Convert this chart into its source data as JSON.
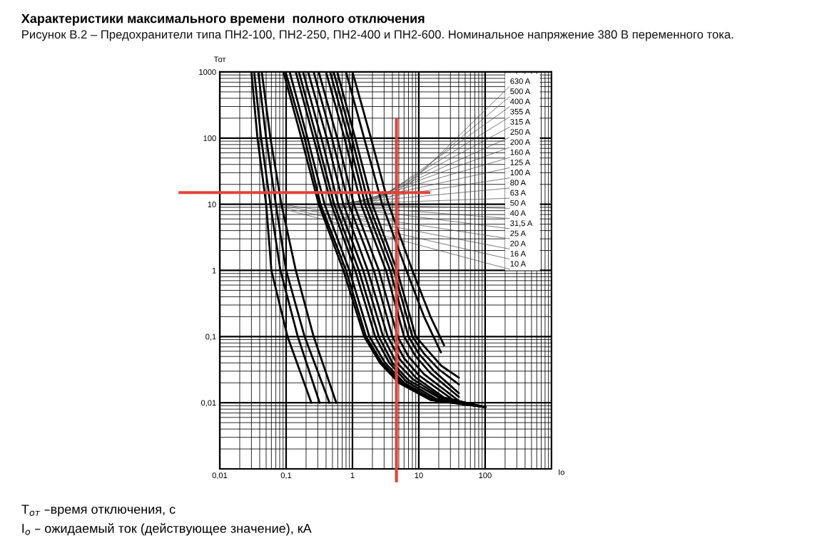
{
  "chart_data": {
    "type": "line",
    "title": "Характеристики максимального времени  полного отключения",
    "subtitle": "Рисунок В.2 – Предохранители типа ПН2-100, ПН2-250, ПН2-400 и ПН2-600. Номинальное напряжение 380 В переменного тока.",
    "xlabel": "Io",
    "ylabel": "Тот",
    "annotations": [
      "T$_{от}$ –время отключения, с",
      "I$_{о}$ – ожидаемый ток (действующее значение), кА"
    ],
    "log": "xy",
    "grid": true,
    "xlim": [
      0.01,
      1000
    ],
    "ylim": [
      0.001,
      1000
    ],
    "xticks": [
      {
        "value": 0.01,
        "label": "0,01"
      },
      {
        "value": 0.1,
        "label": "0,1"
      },
      1,
      10,
      100
    ],
    "yticks": [
      {
        "value": 0.01,
        "label": "0,01"
      },
      {
        "value": 0.1,
        "label": "0,1"
      },
      1,
      10,
      100,
      1000
    ],
    "ref_lines": [
      {
        "axis": "y",
        "value": 15,
        "color": "#e0443a"
      },
      {
        "axis": "x",
        "value": 4.6,
        "color": "#e0443a"
      }
    ],
    "series": [
      {
        "name": "630 A",
        "color": "#000000",
        "x": [
          1.0,
          1.9,
          3.5,
          8,
          15,
          24
        ],
        "values": [
          1000,
          100,
          10,
          1,
          0.2,
          0.074
        ]
      },
      {
        "name": "500 A",
        "color": "#000000",
        "x": [
          0.8,
          1.5,
          2.8,
          6.5,
          12,
          21.5
        ],
        "values": [
          1000,
          100,
          10,
          1,
          0.2,
          0.058
        ]
      },
      {
        "name": "400 A",
        "color": "#000000",
        "x": [
          0.59,
          1.1,
          2,
          4.7,
          9,
          14,
          22,
          40
        ],
        "values": [
          1000,
          100,
          10,
          1,
          0.1,
          0.06,
          0.036,
          0.024
        ]
      },
      {
        "name": "355 A",
        "color": "#000000",
        "x": [
          0.52,
          0.98,
          1.75,
          4.2,
          8,
          12,
          20,
          40
        ],
        "values": [
          1000,
          100,
          10,
          1,
          0.1,
          0.055,
          0.032,
          0.019
        ]
      },
      {
        "name": "315 A",
        "color": "#000000",
        "x": [
          0.46,
          0.87,
          1.55,
          3.7,
          7,
          10,
          17,
          40
        ],
        "values": [
          1000,
          100,
          10,
          1,
          0.1,
          0.055,
          0.03,
          0.014
        ]
      },
      {
        "name": "250 A",
        "color": "#000000",
        "x": [
          0.4,
          0.76,
          1.35,
          3.2,
          6,
          9,
          15,
          40
        ],
        "values": [
          1000,
          100,
          10,
          1,
          0.1,
          0.05,
          0.028,
          0.0123
        ]
      },
      {
        "name": "200 A",
        "color": "#000000",
        "x": [
          0.31,
          0.59,
          1.05,
          2.5,
          4.8,
          7,
          12,
          40
        ],
        "values": [
          1000,
          100,
          10,
          1,
          0.1,
          0.05,
          0.027,
          0.0107
        ]
      },
      {
        "name": "160 A",
        "color": "#000000",
        "x": [
          0.26,
          0.49,
          0.88,
          2.1,
          4,
          6,
          10,
          40
        ],
        "values": [
          1000,
          100,
          10,
          1,
          0.1,
          0.047,
          0.026,
          0.0096
        ]
      },
      {
        "name": "125 A",
        "color": "#000000",
        "x": [
          0.215,
          0.41,
          0.73,
          1.7,
          3.4,
          5.2,
          9,
          24,
          100
        ],
        "values": [
          1000,
          100,
          10,
          1,
          0.1,
          0.045,
          0.024,
          0.012,
          0.0086
        ]
      },
      {
        "name": "100 A",
        "color": "#000000",
        "x": [
          0.18,
          0.34,
          0.61,
          1.45,
          2.9,
          4.5,
          8,
          22,
          100
        ],
        "values": [
          1000,
          100,
          10,
          1,
          0.1,
          0.042,
          0.023,
          0.012,
          0.0086
        ]
      },
      {
        "name": "80 A",
        "color": "#000000",
        "x": [
          0.156,
          0.29,
          0.53,
          1.25,
          2.5,
          4,
          7,
          20,
          100
        ],
        "values": [
          1000,
          100,
          10,
          1,
          0.1,
          0.04,
          0.022,
          0.012,
          0.0086
        ]
      },
      {
        "name": "63 A",
        "color": "#000000",
        "x": [
          0.14,
          0.26,
          0.48,
          1.1,
          2.2,
          3.6,
          6.5,
          18,
          100
        ],
        "values": [
          1000,
          100,
          10,
          1,
          0.1,
          0.04,
          0.021,
          0.0115,
          0.0086
        ]
      },
      {
        "name": "50 A",
        "color": "#000000",
        "x": [
          0.113,
          0.21,
          0.38,
          0.9,
          1.8,
          3.1,
          6,
          17,
          100
        ],
        "values": [
          1000,
          100,
          10,
          1,
          0.1,
          0.04,
          0.02,
          0.011,
          0.0086
        ]
      },
      {
        "name": "40 A",
        "color": "#000000",
        "x": [
          0.098,
          0.19,
          0.33,
          0.8,
          1.6,
          2.8,
          5.5,
          16,
          100
        ],
        "values": [
          1000,
          100,
          10,
          1,
          0.1,
          0.04,
          0.02,
          0.011,
          0.0086
        ]
      },
      {
        "name": "31,5 A",
        "color": "#000000",
        "x": [
          0.091,
          0.17,
          0.31,
          0.73,
          1.5,
          2.6,
          5,
          15,
          100
        ],
        "values": [
          1000,
          100,
          10,
          1,
          0.1,
          0.04,
          0.02,
          0.011,
          0.0086
        ]
      },
      {
        "name": "25 A",
        "color": "#000000",
        "x": [
          0.043,
          0.058,
          0.085,
          0.14,
          0.26,
          0.57
        ],
        "values": [
          1000,
          100,
          10,
          1,
          0.1,
          0.01
        ]
      },
      {
        "name": "20 A",
        "color": "#000000",
        "x": [
          0.038,
          0.05,
          0.07,
          0.1,
          0.19,
          0.45
        ],
        "values": [
          1000,
          100,
          10,
          1,
          0.1,
          0.01
        ]
      },
      {
        "name": "16 A",
        "color": "#000000",
        "x": [
          0.033,
          0.042,
          0.058,
          0.082,
          0.15,
          0.32
        ],
        "values": [
          1000,
          100,
          10,
          1,
          0.1,
          0.01
        ]
      },
      {
        "name": "10 A",
        "color": "#000000",
        "x": [
          0.03,
          0.037,
          0.05,
          0.06,
          0.105,
          0.24
        ],
        "values": [
          1000,
          100,
          10,
          1,
          0.1,
          0.01
        ]
      }
    ]
  }
}
